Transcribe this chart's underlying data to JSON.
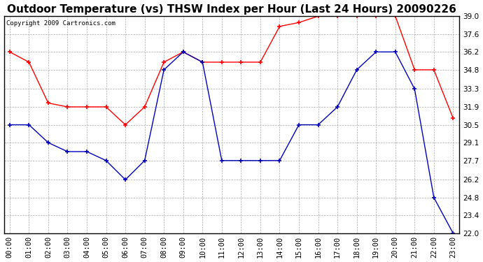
{
  "title": "Outdoor Temperature (vs) THSW Index per Hour (Last 24 Hours) 20090226",
  "copyright": "Copyright 2009 Cartronics.com",
  "hours": [
    "00:00",
    "01:00",
    "02:00",
    "03:00",
    "04:00",
    "05:00",
    "06:00",
    "07:00",
    "08:00",
    "09:00",
    "10:00",
    "11:00",
    "12:00",
    "13:00",
    "14:00",
    "15:00",
    "16:00",
    "17:00",
    "18:00",
    "19:00",
    "20:00",
    "21:00",
    "22:00",
    "23:00"
  ],
  "red_data": [
    36.2,
    35.4,
    32.2,
    31.9,
    31.9,
    31.9,
    30.5,
    31.9,
    35.4,
    36.2,
    35.4,
    35.4,
    35.4,
    35.4,
    38.2,
    38.5,
    39.0,
    39.0,
    39.0,
    39.0,
    39.0,
    34.8,
    34.8,
    31.0
  ],
  "blue_data": [
    30.5,
    30.5,
    29.1,
    28.4,
    28.4,
    27.7,
    26.2,
    27.7,
    34.8,
    36.2,
    35.4,
    27.7,
    27.7,
    27.7,
    27.7,
    30.5,
    30.5,
    31.9,
    34.8,
    36.2,
    36.2,
    33.3,
    24.8,
    22.0
  ],
  "red_color": "#ff0000",
  "blue_color": "#0000bb",
  "bg_color": "#ffffff",
  "plot_bg_color": "#ffffff",
  "grid_color": "#aaaaaa",
  "ylim_min": 22.0,
  "ylim_max": 39.0,
  "yticks": [
    22.0,
    23.4,
    24.8,
    26.2,
    27.7,
    29.1,
    30.5,
    31.9,
    33.3,
    34.8,
    36.2,
    37.6,
    39.0
  ],
  "title_fontsize": 11,
  "tick_fontsize": 7.5,
  "copyright_fontsize": 6.5
}
